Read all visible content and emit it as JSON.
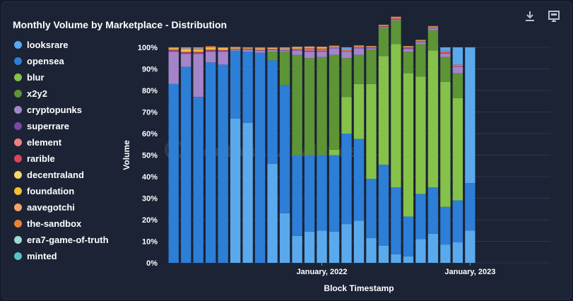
{
  "title": "Monthly Volume by Marketplace - Distribution",
  "toolbar": {
    "download_icon": "download-icon",
    "save_icon": "save-image-icon"
  },
  "watermark": "Footprint Analytics",
  "legend": [
    {
      "name": "looksrare",
      "color": "#5aa9ec"
    },
    {
      "name": "opensea",
      "color": "#2d7ed6"
    },
    {
      "name": "blur",
      "color": "#86c14a"
    },
    {
      "name": "x2y2",
      "color": "#5d9436"
    },
    {
      "name": "cryptopunks",
      "color": "#a485c9"
    },
    {
      "name": "superrare",
      "color": "#7b47a6"
    },
    {
      "name": "element",
      "color": "#ee8080"
    },
    {
      "name": "rarible",
      "color": "#e04459"
    },
    {
      "name": "decentraland",
      "color": "#f5d66b"
    },
    {
      "name": "foundation",
      "color": "#f4c22c"
    },
    {
      "name": "aavegotchi",
      "color": "#f0a56a"
    },
    {
      "name": "the-sandbox",
      "color": "#ee8135"
    },
    {
      "name": "era7-game-of-truth",
      "color": "#9fd9cf"
    },
    {
      "name": "minted",
      "color": "#54c6c3"
    }
  ],
  "chart_data": {
    "type": "bar",
    "stacked": true,
    "normalized": true,
    "xlabel": "Block Timestamp",
    "ylabel": "Volume",
    "ylim": [
      0,
      100
    ],
    "yticks": [
      "0%",
      "10%",
      "20%",
      "30%",
      "40%",
      "50%",
      "60%",
      "70%",
      "80%",
      "90%",
      "100%"
    ],
    "xtick_labels": [
      {
        "label": "January, 2022",
        "category": "2022-01"
      },
      {
        "label": "January, 2023",
        "category": "2023-01"
      }
    ],
    "categories": [
      "2021-01",
      "2021-02",
      "2021-03",
      "2021-04",
      "2021-05",
      "2021-06",
      "2021-07",
      "2021-08",
      "2021-09",
      "2021-10",
      "2021-11",
      "2021-12",
      "2022-01",
      "2022-02",
      "2022-03",
      "2022-04",
      "2022-05",
      "2022-06",
      "2022-07",
      "2022-08",
      "2022-09",
      "2022-10",
      "2022-11",
      "2022-12",
      "2023-01",
      "2023-02",
      "2023-03",
      "2023-04",
      "2023-05",
      "2023-06",
      "2023-07"
    ],
    "series": [
      {
        "name": "looksrare",
        "values": [
          0,
          0,
          0,
          0,
          0,
          67,
          65,
          0,
          46,
          23,
          12.5,
          14.5,
          15,
          14.5,
          18,
          19.5,
          11.5,
          8,
          4,
          3,
          11,
          13.5,
          8.5,
          9.5,
          15,
          0,
          0,
          0,
          0,
          0,
          0
        ]
      },
      {
        "name": "opensea",
        "values": [
          83,
          91,
          77,
          93,
          92,
          31.5,
          33,
          97.5,
          48,
          59.5,
          37.5,
          35.5,
          35,
          35.5,
          42,
          38,
          27.5,
          37.5,
          31,
          18.5,
          21,
          21.5,
          17.5,
          19.5,
          22,
          0,
          0,
          0,
          0,
          0,
          0
        ]
      },
      {
        "name": "blur",
        "values": [
          0,
          0,
          0,
          0,
          0,
          0,
          0,
          0,
          0,
          0,
          0,
          0,
          0,
          2.5,
          17,
          25.5,
          44,
          50.5,
          66.5,
          66.5,
          54.5,
          63.5,
          58,
          47.5,
          0,
          0,
          0,
          0,
          0,
          0,
          0
        ]
      },
      {
        "name": "x2y2",
        "values": [
          0,
          0,
          0,
          0,
          0,
          0,
          0,
          0,
          4,
          15.5,
          46.5,
          45,
          45.5,
          44,
          18,
          13.5,
          16,
          13,
          11,
          10,
          15,
          9.5,
          11.5,
          11.5,
          0,
          0,
          0,
          0,
          0,
          0,
          0
        ]
      },
      {
        "name": "cryptopunks",
        "values": [
          15,
          6,
          20,
          5,
          6,
          0.5,
          0.9,
          1,
          0.8,
          0.5,
          2,
          3,
          2.5,
          3,
          3,
          3,
          0.5,
          0.4,
          0.4,
          1.2,
          0.9,
          0.8,
          1.6,
          3,
          0,
          0,
          0,
          0,
          0,
          0,
          0
        ]
      },
      {
        "name": "superrare",
        "values": [
          0.5,
          0.5,
          0.5,
          0.5,
          0.5,
          0.2,
          0.2,
          0.1,
          0.2,
          0.2,
          0.3,
          0.5,
          0.4,
          0.3,
          0.2,
          0.3,
          0.3,
          0.2,
          0.2,
          0.4,
          0.2,
          0.2,
          0.2,
          0.2,
          0,
          0,
          0,
          0,
          0,
          0,
          0
        ]
      },
      {
        "name": "element",
        "values": [
          0,
          0,
          0,
          0,
          0,
          0,
          0,
          0,
          0,
          0,
          0.3,
          0.6,
          0.5,
          0.2,
          0.2,
          0.2,
          0.1,
          0.1,
          0.2,
          0.1,
          0.2,
          0.2,
          0.2,
          0.1,
          0,
          0,
          0,
          0,
          0,
          0,
          0
        ]
      },
      {
        "name": "rarible",
        "values": [
          0.5,
          0.5,
          0.5,
          0.5,
          0.3,
          0.2,
          0.2,
          0.2,
          0.2,
          0.2,
          0.3,
          0.4,
          0.4,
          0.2,
          0.2,
          0.3,
          0.2,
          0.3,
          0.4,
          0.4,
          0.2,
          0.2,
          0.4,
          0.2,
          0,
          0,
          0,
          0,
          0,
          0,
          0
        ]
      },
      {
        "name": "decentraland",
        "values": [
          0.3,
          0.5,
          0.3,
          0.3,
          0.2,
          0.1,
          0.1,
          0.1,
          0.1,
          0.1,
          0.1,
          0.1,
          0.1,
          0.1,
          0.1,
          0.1,
          0.1,
          0.1,
          0.1,
          0.1,
          0.1,
          0.1,
          0.1,
          0.1,
          0,
          0,
          0,
          0,
          0,
          0,
          0
        ]
      },
      {
        "name": "foundation",
        "values": [
          0.3,
          0.5,
          0.5,
          0.5,
          0.5,
          0.3,
          0.2,
          0.3,
          0.2,
          0.2,
          0.2,
          0.2,
          0.2,
          0.1,
          0.1,
          0.1,
          0.1,
          0.1,
          0.1,
          0.1,
          0.1,
          0.1,
          0.1,
          0.1,
          0,
          0,
          0,
          0,
          0,
          0,
          0
        ]
      },
      {
        "name": "aavegotchi",
        "values": [
          0.2,
          0.3,
          0.3,
          0.3,
          0.3,
          0.3,
          0.3,
          0.4,
          0.3,
          0.3,
          0.5,
          0.5,
          0.6,
          0.3,
          0.3,
          0.3,
          0.2,
          0.2,
          0.2,
          0.2,
          0.2,
          0.2,
          0.2,
          0.2,
          0,
          0,
          0,
          0,
          0,
          0,
          0
        ]
      },
      {
        "name": "the-sandbox",
        "values": [
          0.2,
          0.2,
          0.4,
          0.4,
          0.2,
          0.1,
          0.1,
          0.2,
          0.1,
          0.1,
          0.1,
          0.1,
          0.1,
          0.1,
          0.1,
          0.1,
          0.1,
          0.1,
          0.1,
          0.1,
          0.1,
          0.1,
          0.1,
          0.1,
          0,
          0,
          0,
          0,
          0,
          0,
          0
        ]
      },
      {
        "name": "era7-game-of-truth",
        "values": [
          0,
          0,
          0,
          0,
          0,
          0,
          0,
          0,
          0,
          0,
          0,
          0,
          0,
          0,
          0,
          0,
          0,
          0,
          0,
          0,
          0,
          0,
          0,
          0,
          0,
          0,
          0,
          0,
          0,
          0,
          0
        ]
      },
      {
        "name": "minted",
        "values": [
          0,
          0,
          0,
          0,
          0,
          0,
          0,
          0,
          0,
          0,
          0,
          0,
          0,
          0,
          0,
          0,
          0,
          0,
          0,
          0,
          0,
          0,
          0,
          0,
          0,
          0,
          0,
          0,
          0,
          0,
          0
        ]
      }
    ]
  }
}
